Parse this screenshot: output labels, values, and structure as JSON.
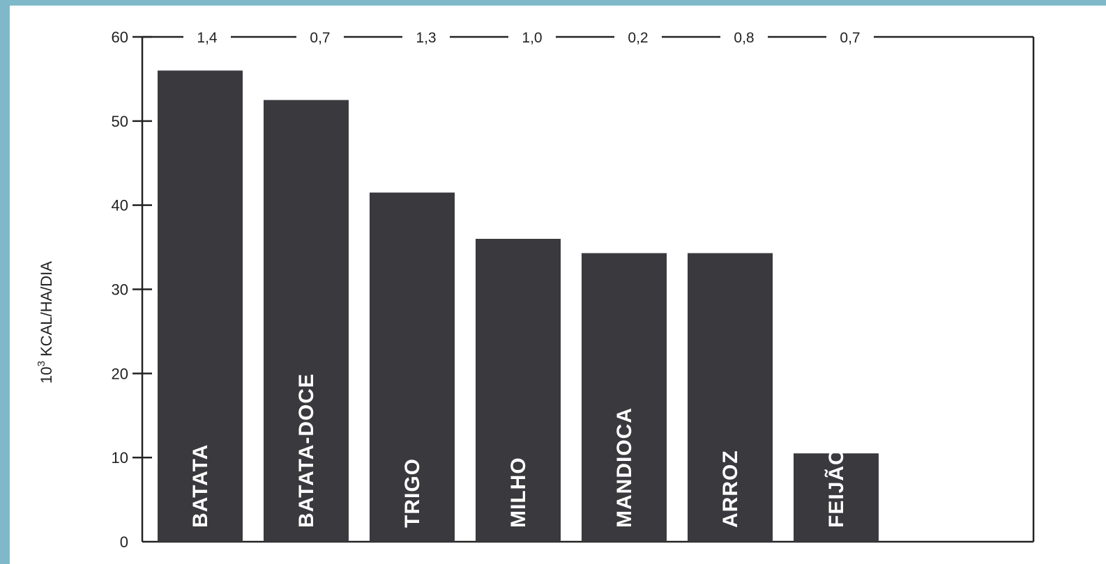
{
  "chart_data": {
    "type": "bar",
    "categories": [
      "BATATA",
      "BATATA-DOCE",
      "TRIGO",
      "MILHO",
      "MANDIOCA",
      "ARROZ",
      "FEIJÃO"
    ],
    "values": [
      56,
      52.5,
      41.5,
      36,
      34.3,
      34.3,
      10.5
    ],
    "top_values": [
      "1,4",
      "0,7",
      "1,3",
      "1,0",
      "0,2",
      "0,8",
      "0,7"
    ],
    "ylabel_base": "10",
    "ylabel_exp": "3",
    "ylabel_rest": " KCAL/HA/DIA",
    "xlabel": "",
    "ylim": [
      0,
      60
    ],
    "yticks": [
      0,
      10,
      20,
      30,
      40,
      50,
      60
    ],
    "grid": false,
    "bar_color": "#3a3a3e",
    "background_color": "#7fb8c8"
  }
}
